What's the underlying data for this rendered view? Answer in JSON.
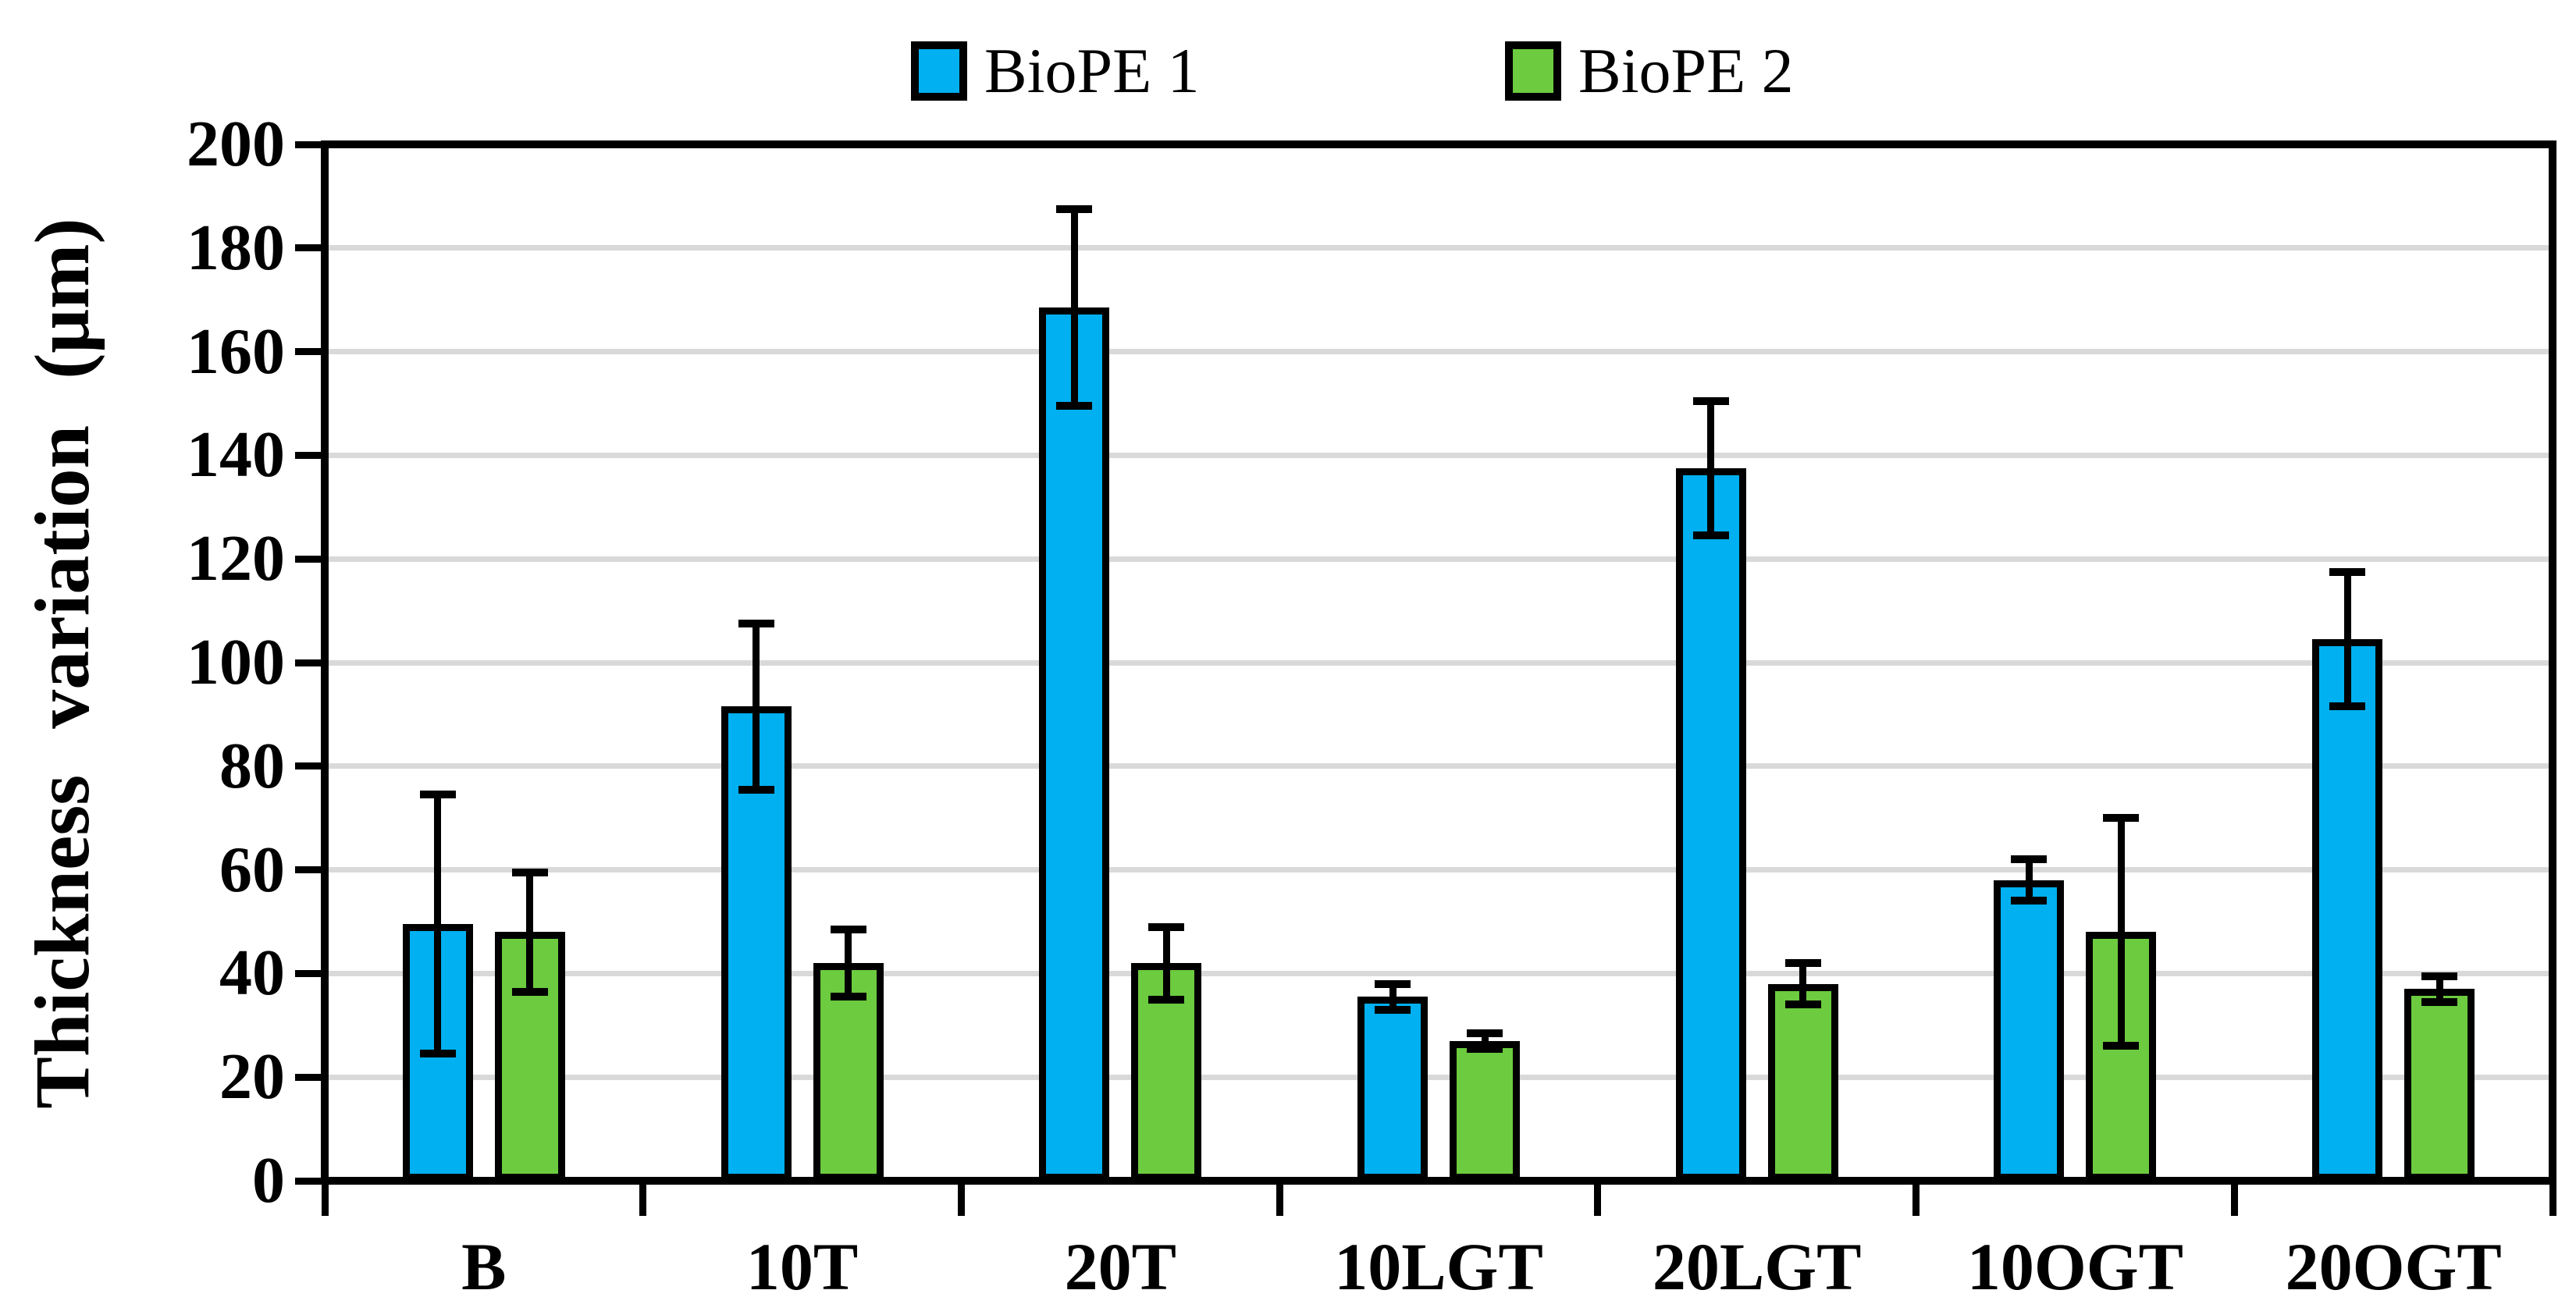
{
  "chart_data": {
    "type": "bar",
    "title": "",
    "xlabel": "",
    "ylabel": "Thickness variation (μm)",
    "ylim": [
      0,
      200
    ],
    "ytick_step": 20,
    "yticks": [
      0,
      20,
      40,
      60,
      80,
      100,
      120,
      140,
      160,
      180,
      200
    ],
    "grid": "horizontal",
    "gridline_color": "#D9D9D9",
    "categories": [
      "B",
      "10T",
      "20T",
      "10LGT",
      "20LGT",
      "10OGT",
      "20OGT"
    ],
    "series": [
      {
        "name": "BioPE 1",
        "color": "#00B0F0",
        "values": [
          49.5,
          91.5,
          168.5,
          35.5,
          137.5,
          58,
          104.5
        ],
        "errors": [
          25,
          16,
          19,
          2.5,
          13,
          4,
          13
        ]
      },
      {
        "name": "BioPE 2",
        "color": "#6CCB3F",
        "values": [
          48,
          42,
          42,
          27,
          38,
          48,
          37
        ],
        "errors": [
          11.5,
          6.5,
          7,
          1.5,
          4,
          22,
          2.5
        ]
      }
    ],
    "legend_position": "top-center",
    "bar_border_color": "#000000",
    "error_bar_color": "#000000"
  }
}
